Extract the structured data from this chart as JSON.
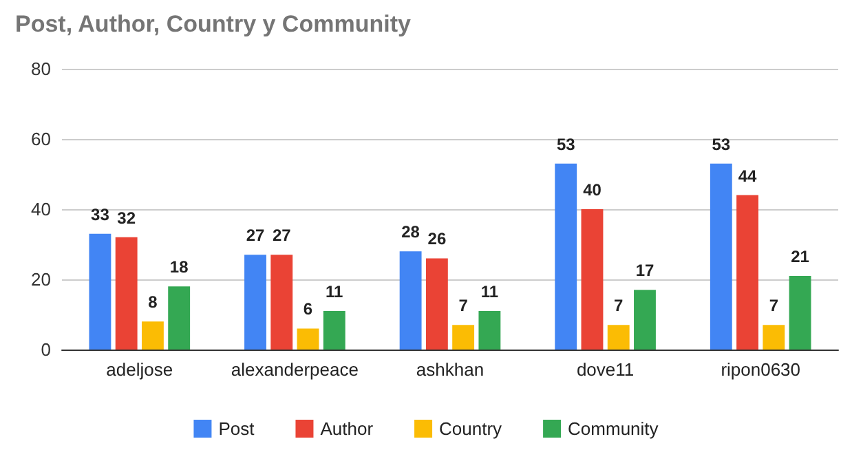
{
  "chart_data": {
    "type": "bar",
    "title": "Post, Author, Country y Community",
    "categories": [
      "adeljose",
      "alexanderpeace",
      "ashkhan",
      "dove11",
      "ripon0630"
    ],
    "series": [
      {
        "name": "Post",
        "color": "#4285f4",
        "values": [
          33,
          27,
          28,
          53,
          53
        ]
      },
      {
        "name": "Author",
        "color": "#ea4335",
        "values": [
          32,
          27,
          26,
          40,
          44
        ]
      },
      {
        "name": "Country",
        "color": "#fbbc04",
        "values": [
          8,
          6,
          7,
          7,
          7
        ]
      },
      {
        "name": "Community",
        "color": "#34a853",
        "values": [
          18,
          11,
          11,
          17,
          21
        ]
      }
    ],
    "ylim": [
      0,
      80
    ],
    "yticks": [
      0,
      20,
      40,
      60,
      80
    ],
    "grid": "y",
    "legend": "bottom",
    "data_labels": true
  }
}
